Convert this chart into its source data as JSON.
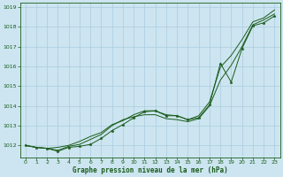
{
  "xlabel": "Graphe pression niveau de la mer (hPa)",
  "bg_color": "#cce5f0",
  "grid_color": "#aacce0",
  "line_color": "#1a5c1a",
  "ylim": [
    1011.4,
    1019.2
  ],
  "yticks": [
    1012,
    1013,
    1014,
    1015,
    1016,
    1017,
    1018,
    1019
  ],
  "xlim": [
    -0.5,
    23.5
  ],
  "xticks": [
    0,
    1,
    2,
    3,
    4,
    5,
    6,
    7,
    8,
    9,
    10,
    11,
    12,
    13,
    14,
    15,
    16,
    17,
    18,
    19,
    20,
    21,
    22,
    23
  ],
  "series1_x": [
    0,
    1,
    2,
    3,
    4,
    5,
    6,
    7,
    8,
    9,
    10,
    11,
    12,
    13,
    14,
    15,
    16,
    17,
    18,
    19,
    20,
    21,
    22,
    23
  ],
  "series1_y": [
    1012.0,
    1011.9,
    1011.85,
    1011.7,
    1011.9,
    1011.95,
    1012.05,
    1012.35,
    1012.75,
    1013.05,
    1013.4,
    1013.7,
    1013.75,
    1013.5,
    1013.5,
    1013.3,
    1013.4,
    1014.05,
    1016.15,
    1015.2,
    1016.9,
    1018.05,
    1018.2,
    1018.55
  ],
  "series2_x": [
    0,
    1,
    2,
    3,
    4,
    5,
    6,
    7,
    8,
    9,
    10,
    11,
    12,
    13,
    14,
    15,
    16,
    17,
    18,
    19,
    20,
    21,
    22,
    23
  ],
  "series2_y": [
    1012.0,
    1011.9,
    1011.85,
    1011.75,
    1011.95,
    1012.05,
    1012.3,
    1012.55,
    1013.0,
    1013.3,
    1013.45,
    1013.55,
    1013.55,
    1013.35,
    1013.3,
    1013.2,
    1013.35,
    1014.0,
    1015.3,
    1016.05,
    1017.0,
    1018.1,
    1018.35,
    1018.65
  ],
  "series3_x": [
    0,
    1,
    2,
    3,
    4,
    5,
    6,
    7,
    8,
    9,
    10,
    11,
    12,
    13,
    14,
    15,
    16,
    17,
    18,
    19,
    20,
    21,
    22,
    23
  ],
  "series3_y": [
    1012.0,
    1011.9,
    1011.85,
    1011.9,
    1012.0,
    1012.2,
    1012.45,
    1012.65,
    1013.05,
    1013.25,
    1013.55,
    1013.75,
    1013.75,
    1013.55,
    1013.5,
    1013.3,
    1013.5,
    1014.2,
    1015.95,
    1016.55,
    1017.35,
    1018.25,
    1018.45,
    1018.85
  ]
}
